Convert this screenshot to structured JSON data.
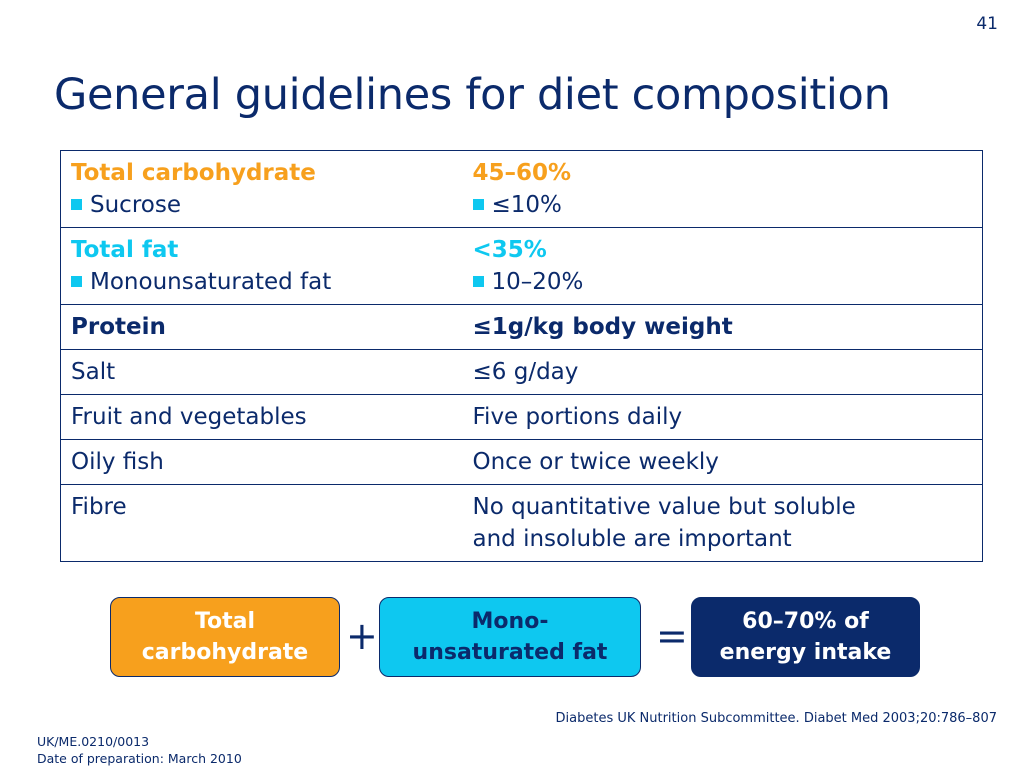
{
  "slide_number": "41",
  "title": "General guidelines for diet composition",
  "table": {
    "rows": [
      {
        "label": "Total carbohydrate",
        "value": "45–60%",
        "sub_label": "Sucrose",
        "sub_value": "≤10%"
      },
      {
        "label": "Total fat",
        "value": "<35%",
        "sub_label": "Monounsaturated fat",
        "sub_value": "10–20%"
      },
      {
        "label": "Protein",
        "value": "≤1g/kg body weight"
      },
      {
        "label": "Salt",
        "value": "≤6 g/day"
      },
      {
        "label": "Fruit and vegetables",
        "value": "Five portions daily"
      },
      {
        "label": "Oily fish",
        "value": "Once or twice weekly"
      },
      {
        "label": "Fibre",
        "value_line1": "No quantitative value but soluble",
        "value_line2": "and insoluble are important"
      }
    ]
  },
  "equation": {
    "box1_line1": "Total",
    "box1_line2": "carbohydrate",
    "plus": "+",
    "box2_line1": "Mono-",
    "box2_line2": "unsaturated fat",
    "equals": "=",
    "box3_line1": "60–70% of",
    "box3_line2": "energy intake"
  },
  "reference": "Diabetes UK Nutrition Subcommittee. Diabet Med 2003;20:786–807",
  "footer": {
    "code": "UK/ME.0210/0013",
    "date": "Date of preparation: March 2010"
  },
  "colors": {
    "navy": "#0b2a6b",
    "orange": "#f7a01d",
    "cyan": "#0ec8f0",
    "slate": "#7e8fb4"
  }
}
